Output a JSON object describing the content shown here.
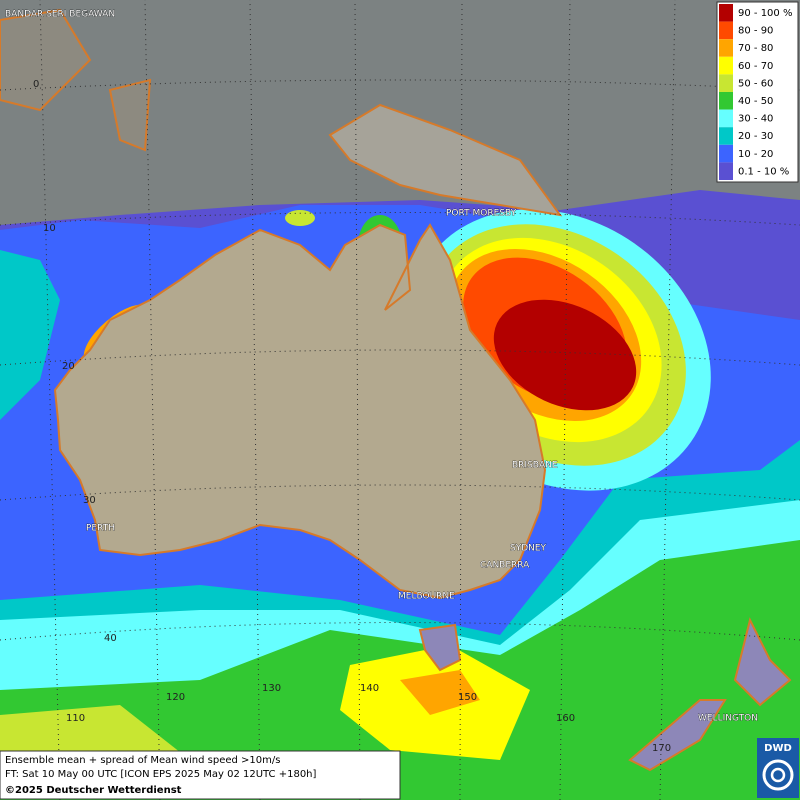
{
  "cities": [
    "BANDAR SERI BEGAWAN",
    "PORT MORESBY",
    "BRISBANE",
    "PERTH",
    "SYDNEY",
    "CANBERRA",
    "MELBOURNE",
    "WELLINGTON"
  ],
  "latitude_labels": [
    0,
    10,
    20,
    30,
    40
  ],
  "longitude_labels": [
    110,
    120,
    130,
    140,
    150,
    160,
    170
  ],
  "legend": [
    {
      "label": "90 - 100 %",
      "color": "#b30000"
    },
    {
      "label": "80 - 90",
      "color": "#ff4a00"
    },
    {
      "label": "70 - 80",
      "color": "#ffa500"
    },
    {
      "label": "60 - 70",
      "color": "#ffff00"
    },
    {
      "label": "50 - 60",
      "color": "#c8e632"
    },
    {
      "label": "40 - 50",
      "color": "#32c832"
    },
    {
      "label": "30 - 40",
      "color": "#66ffff"
    },
    {
      "label": "20 - 30",
      "color": "#00c8c8"
    },
    {
      "label": "10 - 20",
      "color": "#3c64ff"
    },
    {
      "label": "0.1 - 10 %",
      "color": "#5a50d2"
    }
  ],
  "info": {
    "line1": "Ensemble mean + spread of Mean wind speed >10m/s",
    "line2": "FT: Sat 10 May 00 UTC [ICON EPS 2025 May 02 12UTC +180h]",
    "line3": "©2025 Deutscher Wetterdienst"
  },
  "logo": "DWD"
}
